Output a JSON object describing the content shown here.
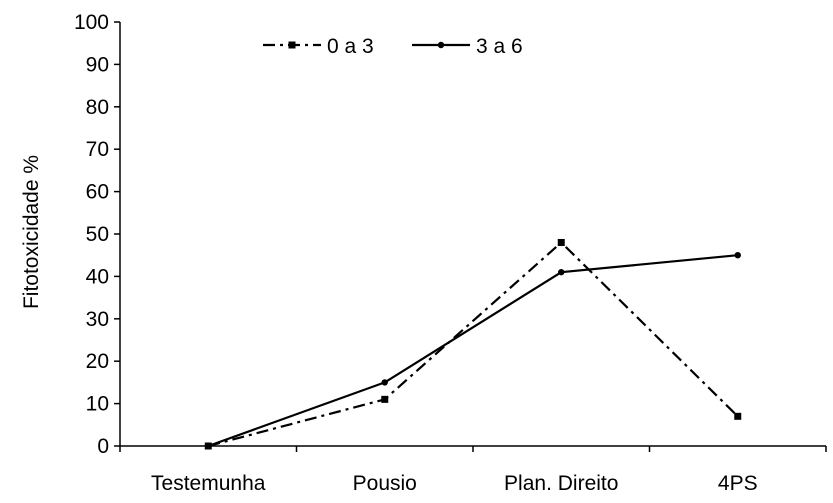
{
  "chart_data": {
    "type": "line",
    "title": "",
    "xlabel": "",
    "ylabel": "Fitotoxicidade %",
    "categories": [
      "Testemunha",
      "Pousio",
      "Plan. Direito",
      "4PS"
    ],
    "ylim": [
      0,
      100
    ],
    "yticks": [
      "0",
      "10",
      "20",
      "30",
      "40",
      "50",
      "60",
      "70",
      "80",
      "90",
      "100"
    ],
    "grid": false,
    "legend_position": "top-center",
    "series": [
      {
        "name": "0 a 3",
        "values": [
          0,
          11,
          48,
          7
        ],
        "line_style": "dash-dot",
        "marker": "square",
        "color": "#000000"
      },
      {
        "name": "3 a 6",
        "values": [
          0,
          15,
          41,
          45
        ],
        "line_style": "solid",
        "marker": "circle",
        "color": "#000000"
      }
    ]
  }
}
